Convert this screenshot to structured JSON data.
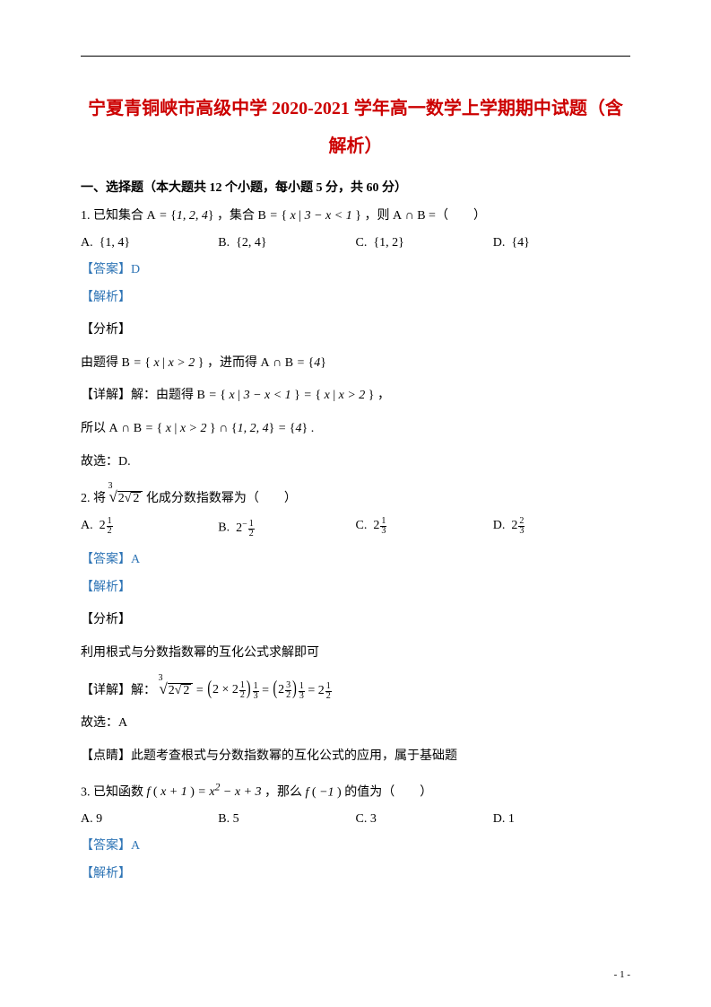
{
  "colors": {
    "title": "#cc0000",
    "answer": "#2e74b5",
    "body": "#000000"
  },
  "fontsizes": {
    "title": 20,
    "body": 14,
    "script": 10,
    "footer": 11
  },
  "title_line1": "宁夏青铜峡市高级中学 2020-2021 学年高一数学上学期期中试题（含",
  "title_line2": "解析）",
  "section1_heading": "一、选择题（本大题共 12 个小题，每小题 5 分，共 60 分）",
  "q1": {
    "stem_pre": "1.  已知集合 ",
    "stem_A": "A = {1, 2, 4}",
    "stem_mid1": " ，集合 ",
    "stem_B": "B = { x | 3 − x < 1 }",
    "stem_mid2": " ，则 ",
    "stem_AcapB": "A ∩ B",
    "stem_post": " =（　　）",
    "optA_label": "A.",
    "optA": "{1, 4}",
    "optB_label": "B.",
    "optB": "{2, 4}",
    "optC_label": "C.",
    "optC": "{1, 2}",
    "optD_label": "D.",
    "optD": "{4}",
    "answer_label": "【答案】",
    "answer_val": "D",
    "jiexi": "【解析】",
    "fenxi": "【分析】",
    "analysis_pre": "由题得 ",
    "analysis_set": "B = { x | x > 2 }",
    "analysis_mid": " ，进而得 ",
    "analysis_res": "A ∩ B = {4}",
    "detail_label": "【详解】解：由题得 ",
    "detail_set": "B = { x | 3 − x < 1 } = { x | x > 2 }",
    "detail_post": " ，",
    "so_pre": "所以 ",
    "so_expr": "A ∩ B = { x | x > 2 } ∩ {1, 2, 4} = {4}",
    "so_post": " .",
    "guxuan": "故选：D."
  },
  "q2": {
    "stem_pre": "2.  将 ",
    "stem_post": " 化成分数指数幂为（　　）",
    "optA_label": "A.",
    "optB_label": "B.",
    "optC_label": "C.",
    "optD_label": "D.",
    "base": "2",
    "A_n": "1",
    "A_d": "2",
    "A_sign": "",
    "B_n": "1",
    "B_d": "2",
    "B_sign": "−",
    "C_n": "1",
    "C_d": "3",
    "C_sign": "",
    "D_n": "2",
    "D_d": "3",
    "D_sign": "",
    "answer_label": "【答案】",
    "answer_val": "A",
    "jiexi": "【解析】",
    "fenxi": "【分析】",
    "analysis": "利用根式与分数指数幂的互化公式求解即可",
    "detail_label": "【详解】解：",
    "step1_n": "1",
    "step1_d": "2",
    "step_outer_n": "1",
    "step_outer_d": "3",
    "step2_n": "3",
    "step2_d": "2",
    "result_n": "1",
    "result_d": "2",
    "guxuan": "故选：A",
    "dianjing": "【点睛】此题考查根式与分数指数幂的互化公式的应用，属于基础题"
  },
  "q3": {
    "stem_pre": "3.  已知函数 ",
    "stem_f1": "f ( x + 1 ) = x² − x + 3",
    "stem_mid": " ，那么 ",
    "stem_f2": "f ( −1 )",
    "stem_post": " 的值为（　　）",
    "optA_label": "A.",
    "optA": "9",
    "optB_label": "B.",
    "optB": "5",
    "optC_label": "C.",
    "optC": "3",
    "optD_label": "D.",
    "optD": "1",
    "answer_label": "【答案】",
    "answer_val": "A",
    "jiexi": "【解析】"
  },
  "footer": "- 1 -"
}
